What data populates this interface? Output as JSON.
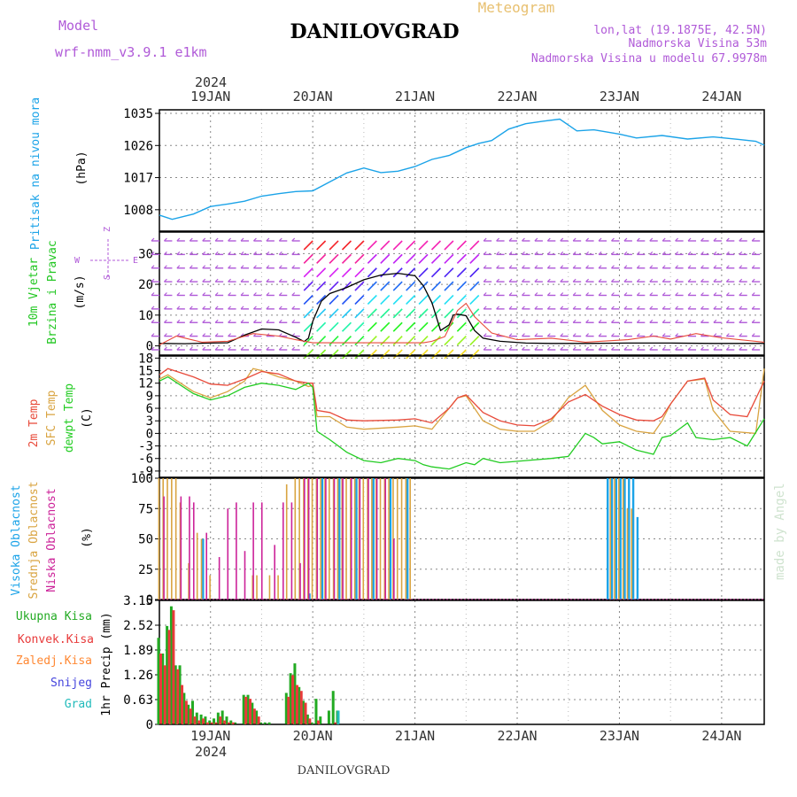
{
  "header": {
    "model_label": "Model",
    "model_name": "wrf-nmm_v3.9.1 e1km",
    "title": "DANILOVGRAD",
    "subtitle": "Meteogram",
    "info": [
      "lon,lat (19.1875E, 42.5N)",
      "Nadmorska Visina 53m",
      "Nadmorska Visina u modelu 67.9978m"
    ],
    "year": "2024",
    "footer_title": "DANILOVGRAD",
    "watermark": "made by Angel"
  },
  "colors": {
    "pressure": "#1ba3e8",
    "wind_label": "#22c722",
    "temp2m": "#e84a3a",
    "sfc": "#d9a441",
    "dewpt": "#22cc22",
    "high_cloud": "#1ba3e8",
    "mid_cloud": "#d9a441",
    "low_cloud": "#cc2299",
    "total_precip": "#22aa22",
    "conv_precip": "#e83a3a",
    "frozen_precip": "#ff8833",
    "snow": "#4444dd",
    "hail": "#22bbbb",
    "label_purple": "#b05ad8",
    "grid": "#888888"
  },
  "chart_data": [
    {
      "type": "line",
      "panel": "pressure",
      "ylabel": [
        "Pritisak na nivou mora",
        "(hPa)"
      ],
      "yticks": [
        1008,
        1017,
        1026,
        1035
      ],
      "ylim": [
        1002,
        1036
      ],
      "xlim": [
        0,
        142
      ],
      "x_tick_positions": [
        12,
        36,
        60,
        84,
        108,
        132
      ],
      "x_tick_labels": [
        "19JAN",
        "20JAN",
        "21JAN",
        "22JAN",
        "23JAN",
        "24JAN"
      ],
      "series": [
        {
          "name": "",
          "x": [
            0,
            3,
            8,
            12,
            16,
            20,
            24,
            28,
            32,
            36,
            40,
            44,
            48,
            52,
            56,
            60,
            64,
            68,
            72,
            75,
            78,
            82,
            86,
            90,
            94,
            98,
            102,
            108,
            112,
            118,
            124,
            130,
            136,
            140,
            142
          ],
          "values": [
            1006.5,
            1005.3,
            1006.8,
            1008.9,
            1009.6,
            1010.4,
            1011.8,
            1012.5,
            1013.1,
            1013.3,
            1015.8,
            1018.3,
            1019.7,
            1018.4,
            1018.8,
            1020.1,
            1022.1,
            1023.2,
            1025.4,
            1026.6,
            1027.4,
            1030.6,
            1032.1,
            1032.8,
            1033.4,
            1030.1,
            1030.4,
            1029.2,
            1028.1,
            1028.8,
            1027.8,
            1028.4,
            1027.7,
            1027.2,
            1026.1
          ]
        }
      ]
    },
    {
      "type": "line",
      "panel": "wind",
      "ylabel": [
        "10m Vjetar",
        "Brzina i Pravac",
        "(m/s)"
      ],
      "compass": [
        "Z",
        "W",
        "E",
        "S"
      ],
      "yticks": [
        0,
        10,
        20,
        30
      ],
      "ylim": [
        -3,
        37
      ],
      "series": [
        {
          "name": "",
          "x": [
            0,
            6,
            12,
            16,
            20,
            24,
            28,
            32,
            34,
            35,
            36,
            38,
            40,
            44,
            48,
            52,
            56,
            60,
            62,
            64,
            66,
            68,
            69,
            70,
            72,
            74,
            76,
            80,
            86,
            92,
            100,
            110,
            120,
            130,
            142
          ],
          "values": [
            0.8,
            0.7,
            0.9,
            1.0,
            3.5,
            5.5,
            5.2,
            2.8,
            1.4,
            2.5,
            8.0,
            14.5,
            17.0,
            19.0,
            21.5,
            23.0,
            23.6,
            22.8,
            19.5,
            14.0,
            5.0,
            6.8,
            10.0,
            10.3,
            9.8,
            5.0,
            2.5,
            1.5,
            0.9,
            0.8,
            0.8,
            0.9,
            0.9,
            0.8,
            0.8
          ]
        },
        {
          "name": "",
          "x": [
            0,
            4,
            10,
            16,
            22,
            28,
            32,
            36,
            40,
            48,
            56,
            62,
            64,
            67,
            70,
            72,
            74,
            78,
            84,
            92,
            100,
            110,
            116,
            120,
            126,
            132,
            142
          ],
          "values": [
            0.3,
            3.2,
            1.2,
            1.5,
            4.0,
            3.2,
            2.0,
            1.0,
            1.0,
            1.0,
            1.0,
            1.0,
            1.5,
            3.0,
            11.5,
            13.8,
            9.5,
            4.2,
            2.0,
            2.5,
            1.2,
            2.0,
            3.2,
            2.2,
            4.0,
            2.6,
            1.2
          ]
        }
      ]
    },
    {
      "type": "line",
      "panel": "temperature",
      "ylabel": [
        "2m Temp",
        "SFC Temp",
        "dewpt Temp",
        "(C)"
      ],
      "yticks": [
        -9,
        -6,
        -3,
        0,
        3,
        6,
        9,
        12,
        15,
        18
      ],
      "ylim": [
        -10.5,
        18.5
      ],
      "series": [
        {
          "name": "2m Temp",
          "x": [
            0,
            2,
            8,
            12,
            16,
            20,
            24,
            28,
            32,
            35,
            36,
            37,
            40,
            44,
            48,
            56,
            60,
            64,
            68,
            70,
            72,
            76,
            80,
            84,
            88,
            92,
            96,
            100,
            104,
            108,
            112,
            116,
            118,
            120,
            124,
            128,
            130,
            134,
            138,
            142
          ],
          "values": [
            14.0,
            15.5,
            13.5,
            11.8,
            11.5,
            13.0,
            14.8,
            14.2,
            12.5,
            12.0,
            12.0,
            5.5,
            5.0,
            3.2,
            3.0,
            3.2,
            3.5,
            2.5,
            6.0,
            8.5,
            9.2,
            5.0,
            3.0,
            2.0,
            1.8,
            3.5,
            7.5,
            9.3,
            6.5,
            4.5,
            3.2,
            3.0,
            4.0,
            7.0,
            12.5,
            13.2,
            8.0,
            4.5,
            4.0,
            12.5
          ]
        },
        {
          "name": "SFC Temp",
          "x": [
            0,
            2,
            8,
            12,
            16,
            20,
            22,
            24,
            28,
            32,
            35,
            36,
            37,
            40,
            44,
            48,
            56,
            60,
            64,
            68,
            70,
            72,
            76,
            80,
            84,
            88,
            92,
            96,
            100,
            104,
            108,
            112,
            116,
            118,
            120,
            124,
            128,
            130,
            134,
            140,
            142
          ],
          "values": [
            13.0,
            14.0,
            10.0,
            8.5,
            10.0,
            12.5,
            15.5,
            15.0,
            13.5,
            12.5,
            11.2,
            11.5,
            4.0,
            4.0,
            1.5,
            1.0,
            1.5,
            1.8,
            1.0,
            6.0,
            8.5,
            9.0,
            3.0,
            1.0,
            0.5,
            0.5,
            3.0,
            8.5,
            11.5,
            5.5,
            2.0,
            0.5,
            0.0,
            3.0,
            7.0,
            12.5,
            13.0,
            5.5,
            0.5,
            0.0,
            15.5
          ]
        },
        {
          "name": "dewpt Temp",
          "x": [
            0,
            2,
            8,
            12,
            16,
            20,
            24,
            28,
            32,
            35,
            36,
            37,
            40,
            44,
            48,
            52,
            56,
            60,
            62,
            64,
            68,
            72,
            74,
            76,
            80,
            86,
            92,
            96,
            100,
            102,
            104,
            108,
            112,
            116,
            118,
            120,
            124,
            126,
            130,
            134,
            138,
            142
          ],
          "values": [
            12.5,
            13.5,
            9.5,
            8.0,
            9.0,
            11.0,
            12.0,
            11.5,
            10.5,
            12.0,
            11.0,
            0.5,
            -1.5,
            -4.5,
            -6.5,
            -7.0,
            -6.0,
            -6.5,
            -7.5,
            -8.0,
            -8.5,
            -7.0,
            -7.5,
            -6.0,
            -7.0,
            -6.5,
            -6.0,
            -5.5,
            0.0,
            -1.0,
            -2.5,
            -2.0,
            -4.0,
            -5.0,
            -1.0,
            -0.5,
            2.5,
            -1.0,
            -1.5,
            -1.0,
            -3.0,
            3.5
          ]
        }
      ]
    },
    {
      "type": "bar",
      "panel": "clouds",
      "ylabel": [
        "Visoka Oblacnost",
        "Srednja Oblacnost",
        "Niska Oblacnost",
        "(%)"
      ],
      "yticks": [
        0,
        25,
        50,
        75,
        100
      ],
      "ylim": [
        0,
        100
      ],
      "series": [
        {
          "name": "Visoka Oblacnost",
          "x": [
            10,
            35,
            38,
            42,
            46,
            50,
            54,
            58,
            105,
            106,
            107,
            108,
            109,
            110,
            111,
            112
          ],
          "values": [
            50,
            5,
            100,
            100,
            100,
            100,
            100,
            100,
            100,
            100,
            100,
            100,
            100,
            100,
            100,
            68
          ]
        },
        {
          "name": "Srednja Oblacnost",
          "x": [
            0,
            1,
            2,
            3,
            4,
            5,
            7,
            9,
            10,
            12,
            22,
            23,
            26,
            28,
            30,
            32,
            33,
            34,
            35,
            36,
            37,
            38,
            39,
            40,
            41,
            42,
            43,
            44,
            45,
            46,
            47,
            48,
            49,
            50,
            51,
            52,
            53,
            54,
            55,
            56,
            57,
            58,
            59,
            106,
            107,
            108,
            109,
            110,
            111
          ],
          "values": [
            100,
            100,
            100,
            100,
            100,
            80,
            30,
            55,
            50,
            20,
            20,
            20,
            20,
            20,
            95,
            100,
            100,
            100,
            100,
            100,
            100,
            100,
            100,
            100,
            100,
            100,
            100,
            100,
            100,
            100,
            100,
            100,
            100,
            100,
            100,
            100,
            100,
            100,
            100,
            100,
            100,
            100,
            100,
            100,
            100,
            100,
            100,
            75,
            75
          ]
        },
        {
          "name": "Niska Oblacnost",
          "x": [
            1,
            5,
            7,
            8,
            11,
            14,
            16,
            18,
            20,
            22,
            24,
            27,
            29,
            31,
            33,
            34,
            35,
            37,
            39,
            41,
            43,
            45,
            47,
            49,
            51,
            53,
            55
          ],
          "values": [
            85,
            85,
            85,
            80,
            55,
            35,
            75,
            80,
            40,
            80,
            80,
            45,
            80,
            80,
            30,
            100,
            100,
            100,
            100,
            100,
            100,
            100,
            100,
            100,
            100,
            100,
            50
          ]
        }
      ]
    },
    {
      "type": "bar",
      "panel": "precipitation",
      "ylabel": [
        "1hr Precip (mm)"
      ],
      "legend": [
        "Ukupna Kisa",
        "Konvek.Kisa",
        "Zaledj.Kisa",
        "Snijeg",
        "Grad"
      ],
      "yticks": [
        0,
        0.63,
        1.26,
        1.89,
        2.52,
        3.15
      ],
      "ylim": [
        0,
        3.15
      ],
      "series": [
        {
          "name": "Ukupna Kisa",
          "x": [
            0,
            1,
            2,
            3,
            4,
            5,
            6,
            7,
            8,
            9,
            10,
            11,
            12,
            13,
            14,
            15,
            16,
            17,
            18,
            20,
            21,
            22,
            23,
            24,
            25,
            26,
            30,
            31,
            32,
            33,
            34,
            35,
            36,
            37,
            38,
            40,
            41,
            42
          ],
          "values": [
            2.2,
            1.8,
            2.5,
            3.0,
            1.5,
            1.5,
            0.8,
            0.5,
            0.6,
            0.3,
            0.25,
            0.2,
            0.1,
            0.15,
            0.3,
            0.35,
            0.2,
            0.1,
            0.05,
            0.75,
            0.75,
            0.55,
            0.35,
            0.05,
            0.05,
            0.05,
            0.8,
            1.3,
            1.55,
            0.95,
            0.6,
            0.25,
            0.05,
            0.65,
            0.2,
            0.35,
            0.85,
            0.35
          ]
        },
        {
          "name": "Konvek.Kisa",
          "x": [
            0,
            1,
            2,
            3,
            4,
            5,
            6,
            7,
            8,
            9,
            10,
            11,
            12,
            13,
            14,
            15,
            16,
            17,
            20,
            21,
            22,
            23,
            30,
            31,
            32,
            33,
            34,
            35,
            37,
            41
          ],
          "values": [
            1.8,
            1.5,
            2.4,
            2.9,
            1.4,
            1.0,
            0.6,
            0.4,
            0.2,
            0.1,
            0.15,
            0.05,
            0.05,
            0.05,
            0.2,
            0.1,
            0.05,
            0.05,
            0.7,
            0.65,
            0.4,
            0.2,
            0.7,
            1.25,
            1.0,
            0.85,
            0.55,
            0.15,
            0.1,
            0.05
          ]
        },
        {
          "name": "Zaledj.Kisa",
          "x": [],
          "values": []
        },
        {
          "name": "Snijeg",
          "x": [],
          "values": []
        },
        {
          "name": "Grad",
          "x": [
            42
          ],
          "values": [
            0.35
          ]
        }
      ]
    }
  ]
}
